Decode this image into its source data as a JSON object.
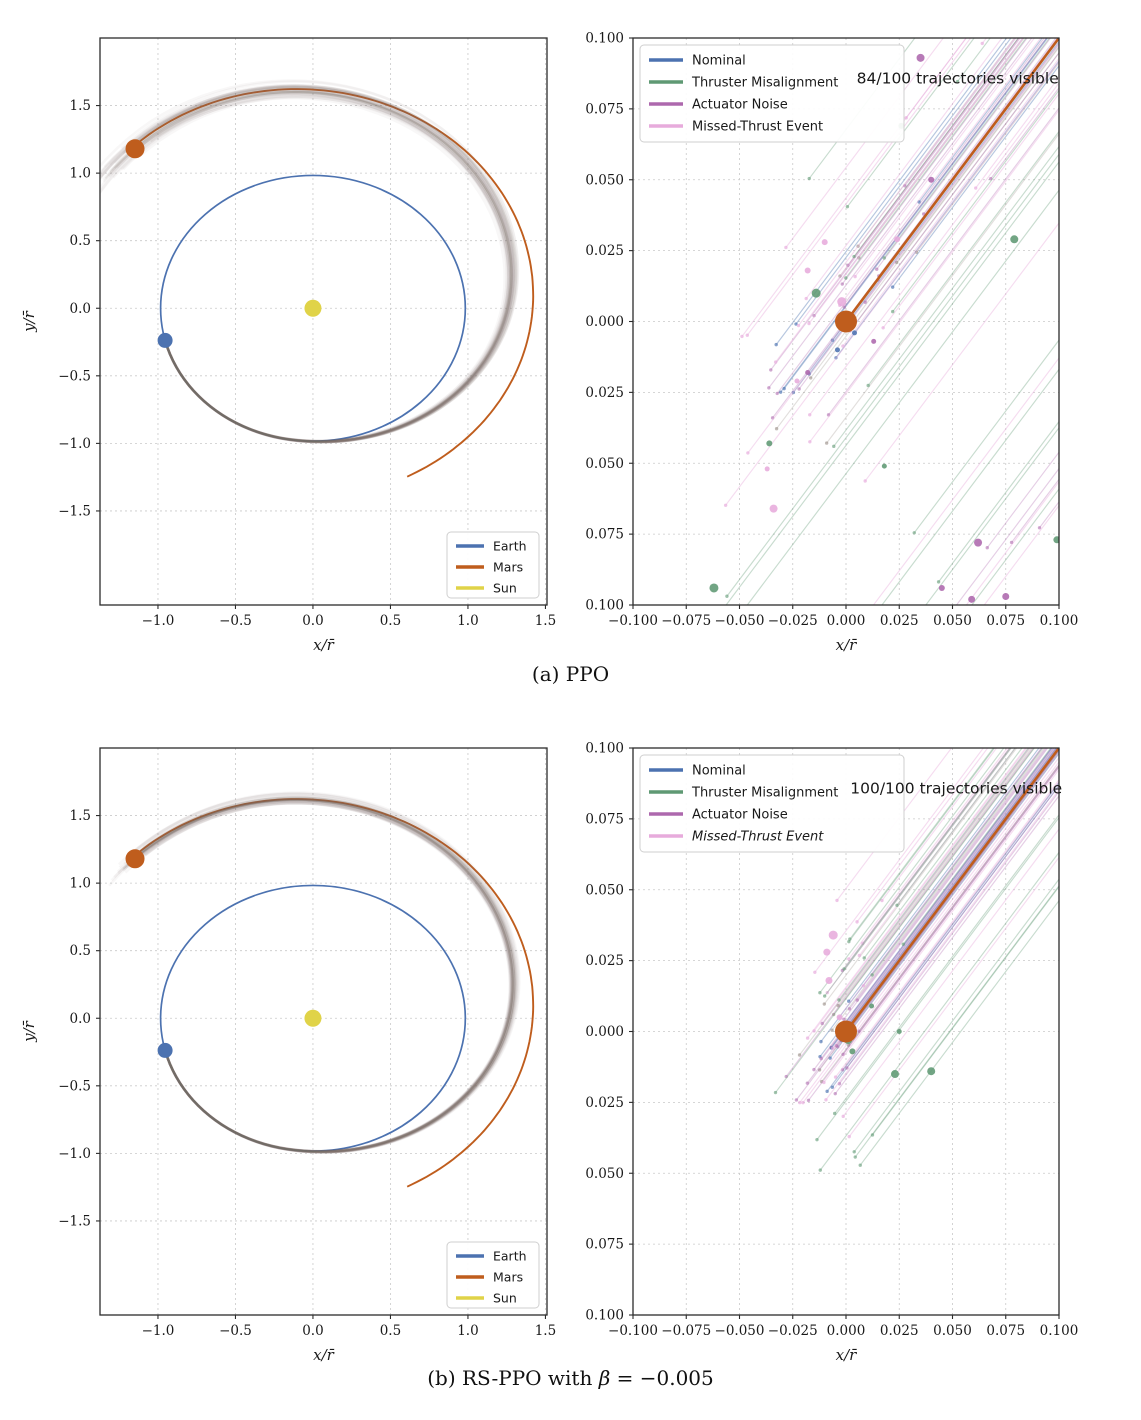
{
  "figure": {
    "caption_a": "(a) PPO",
    "caption_b": {
      "prefix": "(b) RS-PPO with ",
      "symbol": "β",
      "suffix": " = −0.005"
    }
  },
  "colors": {
    "earth": "#4c72b0",
    "mars": "#bf5d1d",
    "sun": "#e0d348",
    "nominal": "#4c72b0",
    "thruster": "#5f9973",
    "actuator": "#ad68ad",
    "missed": "#e7abdc",
    "mc": "#7d6e66",
    "grid": "#c9c9c9",
    "axis": "#2b2b2b",
    "text": "#191919"
  },
  "chart_data": [
    {
      "id": "a-left",
      "panel": "orbit",
      "type": "line",
      "xlabel": "x/r̄",
      "ylabel": "y/r̄",
      "xlim": [
        -1.374,
        1.51
      ],
      "ylim": [
        -2.196,
        2.0
      ],
      "xticks": [
        -1.0,
        -0.5,
        0.0,
        0.5,
        1.0,
        1.5
      ],
      "yticks": [
        -1.5,
        -1.0,
        -0.5,
        0.0,
        0.5,
        1.0,
        1.5
      ],
      "tick_decimals": 1,
      "grid": true,
      "legend": {
        "position": "lower right",
        "entries": [
          {
            "label": "Earth",
            "color_key": "earth"
          },
          {
            "label": "Mars",
            "color_key": "mars"
          },
          {
            "label": "Sun",
            "color_key": "sun"
          }
        ]
      },
      "earth_orbit": {
        "radius": 0.983
      },
      "mars_orbit": {
        "a": 1.523,
        "e": 0.0934,
        "perihelion_angle_deg": -46,
        "theta_start_deg": -64,
        "theta_end_deg": 134.5
      },
      "transfer_bundle": {
        "n": 34,
        "theta_start_deg": -166,
        "theta_end_deg": 134,
        "r_start": 0.983,
        "r_end": 1.655,
        "ramp_start_t": 0.22,
        "lag_sd_deg": 7,
        "r_sd": 0.035,
        "overshoot_deg": 9,
        "seed": 11
      },
      "markers": {
        "sun": [
          0,
          0
        ],
        "earth": [
          -0.954,
          -0.238
        ],
        "mars": [
          -1.148,
          1.18
        ]
      }
    },
    {
      "id": "a-right",
      "panel": "zoom",
      "type": "line",
      "xlabel": "x/r̄",
      "xlim": [
        -0.1,
        0.1
      ],
      "ylim": [
        -0.1,
        0.1
      ],
      "xticks": [
        -0.1,
        -0.075,
        -0.05,
        -0.025,
        0.0,
        0.025,
        0.05,
        0.075,
        0.1
      ],
      "yticks": [
        -0.1,
        -0.075,
        -0.05,
        -0.025,
        0.0,
        0.025,
        0.05,
        0.075,
        0.1
      ],
      "tick_decimals": 3,
      "grid": true,
      "legend": {
        "position": "upper left",
        "entries": [
          {
            "label": "Nominal",
            "color_key": "nominal"
          },
          {
            "label": "Thruster Misalignment",
            "color_key": "thruster"
          },
          {
            "label": "Actuator Noise",
            "color_key": "actuator"
          },
          {
            "label": "Missed-Thrust Event",
            "color_key": "missed"
          }
        ]
      },
      "annotation": {
        "text": "84/100 trajectories visible",
        "x": 0.005,
        "y": 0.084
      },
      "visible_count": "84/100",
      "mars_line": {
        "x1": 0.0,
        "y1": 0.0,
        "x2": 0.14,
        "y2": 0.14
      },
      "mars_marker": [
        0,
        0
      ],
      "bundle": {
        "seed": 7,
        "groups": [
          {
            "color_key": "nominal",
            "n": 10,
            "c_mu": 0.004,
            "c_sd": 0.01,
            "end_mu": -0.012,
            "end_sd": 0.02,
            "alpha": 0.4
          },
          {
            "color_key": "mc",
            "n": 8,
            "c_mu": 0.0,
            "c_sd": 0.012,
            "end_mu": -0.01,
            "end_sd": 0.02,
            "alpha": 0.22
          },
          {
            "color_key": "actuator",
            "n": 18,
            "c_mu": 0.0,
            "c_sd": 0.016,
            "end_mu": -0.01,
            "end_sd": 0.03,
            "alpha": 0.32
          },
          {
            "color_key": "missed",
            "n": 18,
            "c_mu": 0.008,
            "c_sd": 0.03,
            "end_mu": -0.01,
            "end_sd": 0.035,
            "alpha": 0.42
          },
          {
            "color_key": "thruster",
            "n": 14,
            "c_mu": 0.0,
            "c_sd": 0.035,
            "end_mu": -0.015,
            "end_sd": 0.045,
            "alpha": 0.34
          },
          {
            "color_key": "thruster",
            "n": 5,
            "c_mu": -0.135,
            "c_sd": 0.025,
            "end_mu": 0.03,
            "end_sd": 0.035,
            "alpha": 0.34
          },
          {
            "color_key": "missed",
            "n": 4,
            "c_mu": -0.12,
            "c_sd": 0.03,
            "end_mu": 0.03,
            "end_sd": 0.03,
            "alpha": 0.42
          },
          {
            "color_key": "actuator",
            "n": 4,
            "c_mu": -0.15,
            "c_sd": 0.02,
            "end_mu": 0.05,
            "end_sd": 0.025,
            "alpha": 0.32
          }
        ]
      },
      "endpoints": {
        "thruster": [
          [
            -0.062,
            -0.094,
            4.5
          ],
          [
            -0.036,
            -0.043,
            3
          ],
          [
            -0.014,
            0.01,
            4.5
          ],
          [
            0.018,
            -0.051,
            2.5
          ],
          [
            0.079,
            0.029,
            4
          ],
          [
            0.099,
            -0.077,
            3.5
          ],
          [
            0.026,
            0.069,
            3
          ]
        ],
        "actuator": [
          [
            0.035,
            0.093,
            4
          ],
          [
            0.04,
            0.05,
            3
          ],
          [
            0.062,
            -0.078,
            4
          ],
          [
            0.045,
            -0.094,
            3
          ],
          [
            0.059,
            -0.098,
            3.5
          ],
          [
            0.075,
            -0.097,
            3.5
          ],
          [
            -0.018,
            -0.018,
            2.5
          ],
          [
            0.013,
            -0.007,
            2.5
          ]
        ],
        "missed": [
          [
            -0.002,
            0.007,
            4.5
          ],
          [
            -0.01,
            0.028,
            3
          ],
          [
            -0.018,
            0.018,
            3
          ],
          [
            0.024,
            0.029,
            3
          ],
          [
            -0.037,
            -0.052,
            2.5
          ],
          [
            -0.034,
            -0.066,
            4
          ],
          [
            -0.023,
            -0.021,
            2.5
          ]
        ],
        "nominal": [
          [
            0.004,
            -0.004,
            2.5
          ],
          [
            -0.004,
            -0.01,
            2.5
          ]
        ]
      }
    },
    {
      "id": "b-left",
      "panel": "orbit",
      "type": "line",
      "xlabel": "x/r̄",
      "ylabel": "y/r̄",
      "xlim": [
        -1.374,
        1.51
      ],
      "ylim": [
        -2.196,
        2.0
      ],
      "xticks": [
        -1.0,
        -0.5,
        0.0,
        0.5,
        1.0,
        1.5
      ],
      "yticks": [
        -1.5,
        -1.0,
        -0.5,
        0.0,
        0.5,
        1.0,
        1.5
      ],
      "tick_decimals": 1,
      "grid": true,
      "legend": {
        "position": "lower right",
        "entries": [
          {
            "label": "Earth",
            "color_key": "earth"
          },
          {
            "label": "Mars",
            "color_key": "mars"
          },
          {
            "label": "Sun",
            "color_key": "sun"
          }
        ]
      },
      "earth_orbit": {
        "radius": 0.983
      },
      "mars_orbit": {
        "a": 1.523,
        "e": 0.0934,
        "perihelion_angle_deg": -46,
        "theta_start_deg": -64,
        "theta_end_deg": 134.5
      },
      "transfer_bundle": {
        "n": 34,
        "theta_start_deg": -166,
        "theta_end_deg": 134,
        "r_start": 0.983,
        "r_end": 1.655,
        "ramp_start_t": 0.22,
        "lag_sd_deg": 3.5,
        "r_sd": 0.018,
        "overshoot_deg": 2.5,
        "seed": 23
      },
      "markers": {
        "sun": [
          0,
          0
        ],
        "earth": [
          -0.954,
          -0.238
        ],
        "mars": [
          -1.148,
          1.18
        ]
      }
    },
    {
      "id": "b-right",
      "panel": "zoom",
      "type": "line",
      "xlabel": "x/r̄",
      "xlim": [
        -0.1,
        0.1
      ],
      "ylim": [
        -0.1,
        0.1
      ],
      "xticks": [
        -0.1,
        -0.075,
        -0.05,
        -0.025,
        0.0,
        0.025,
        0.05,
        0.075,
        0.1
      ],
      "yticks": [
        -0.1,
        -0.075,
        -0.05,
        -0.025,
        0.0,
        0.025,
        0.05,
        0.075,
        0.1
      ],
      "tick_decimals": 3,
      "grid": true,
      "legend": {
        "position": "upper left",
        "entries": [
          {
            "label": "Nominal",
            "color_key": "nominal"
          },
          {
            "label": "Thruster Misalignment",
            "color_key": "thruster"
          },
          {
            "label": "Actuator Noise",
            "color_key": "actuator"
          },
          {
            "label": "Missed-Thrust Event",
            "color_key": "missed",
            "italic": true
          }
        ]
      },
      "annotation": {
        "text": "100/100 trajectories visible",
        "x": 0.002,
        "y": 0.084
      },
      "visible_count": "100/100",
      "mars_line": {
        "x1": 0.0,
        "y1": 0.0,
        "x2": 0.14,
        "y2": 0.14
      },
      "mars_marker": [
        0,
        0
      ],
      "bundle": {
        "seed": 41,
        "groups": [
          {
            "color_key": "nominal",
            "n": 12,
            "c_mu": 0.002,
            "c_sd": 0.008,
            "end_mu": -0.006,
            "end_sd": 0.006,
            "alpha": 0.4
          },
          {
            "color_key": "mc",
            "n": 8,
            "c_mu": 0.0,
            "c_sd": 0.01,
            "end_mu": -0.006,
            "end_sd": 0.006,
            "alpha": 0.22
          },
          {
            "color_key": "actuator",
            "n": 20,
            "c_mu": 0.0,
            "c_sd": 0.012,
            "end_mu": -0.006,
            "end_sd": 0.008,
            "alpha": 0.32
          },
          {
            "color_key": "missed",
            "n": 22,
            "c_mu": 0.006,
            "c_sd": 0.022,
            "end_mu": -0.006,
            "end_sd": 0.01,
            "alpha": 0.42
          },
          {
            "color_key": "thruster",
            "n": 18,
            "c_mu": 0.0,
            "c_sd": 0.03,
            "end_mu": -0.002,
            "end_sd": 0.015,
            "alpha": 0.34
          }
        ]
      },
      "endpoints": {
        "missed": [
          [
            -0.006,
            0.034,
            4.5
          ],
          [
            -0.009,
            0.028,
            3.5
          ],
          [
            -0.008,
            0.018,
            3.5
          ],
          [
            -0.003,
            0.005,
            3
          ]
        ],
        "thruster": [
          [
            0.001,
            -0.003,
            4
          ],
          [
            0.003,
            -0.007,
            3
          ],
          [
            0.012,
            0.009,
            2.5
          ],
          [
            0.025,
            0.0,
            2.5
          ],
          [
            0.023,
            -0.015,
            4
          ],
          [
            0.04,
            -0.014,
            4
          ]
        ],
        "actuator": [
          [
            -0.003,
            0.001,
            3
          ],
          [
            0.002,
            -0.002,
            2.5
          ]
        ],
        "nominal": [
          [
            0.0,
            -0.002,
            2.5
          ]
        ]
      }
    }
  ]
}
